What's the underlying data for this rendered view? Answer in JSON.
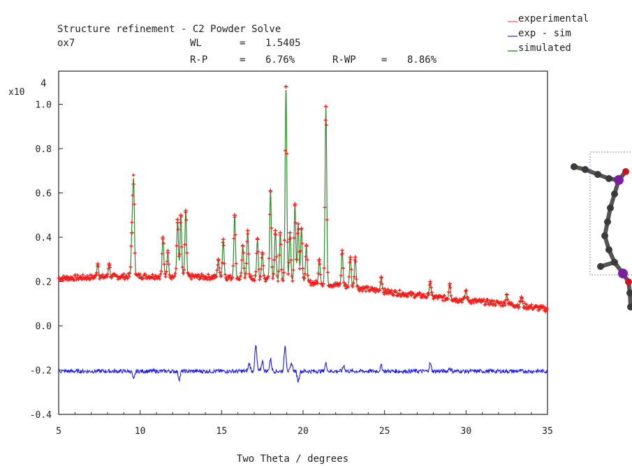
{
  "header": {
    "title": "Structure refinement - C2 Powder Solve",
    "sample": "ox7",
    "wl_label": "WL",
    "wl_value": "1.5405",
    "rp_label": "R-P",
    "rp_value": "6.76%",
    "rwp_label": "R-WP",
    "rwp_value": "8.86%"
  },
  "chart_data": {
    "type": "line",
    "title": "Structure refinement - C2 Powder Solve",
    "xlabel": "Two Theta / degrees",
    "ylabel": "",
    "y_multiplier": "x10",
    "y_multiplier_exponent": "4",
    "xlim": [
      5,
      35
    ],
    "ylim": [
      -0.4,
      1.15
    ],
    "x_ticks": [
      5,
      10,
      15,
      20,
      25,
      30,
      35
    ],
    "x_tick_labels": [
      "5",
      "10",
      "15",
      "20",
      "25",
      "30",
      "35"
    ],
    "y_ticks": [
      -0.4,
      -0.2,
      0.0,
      0.2,
      0.4,
      0.6,
      0.8,
      1.0
    ],
    "y_tick_labels": [
      "-0.4",
      "-0.2",
      "0.0",
      "0.2",
      "0.4",
      "0.6",
      "0.8",
      "1.0"
    ],
    "grid": false,
    "legend_position": "top-right",
    "legend": [
      {
        "name": "experimental",
        "color": "#ff0000"
      },
      {
        "name": "exp - sim",
        "color": "#0000ff"
      },
      {
        "name": "simulated",
        "color": "#008000"
      }
    ],
    "background_trend": [
      [
        5,
        0.215
      ],
      [
        10,
        0.225
      ],
      [
        15,
        0.22
      ],
      [
        19,
        0.205
      ],
      [
        22,
        0.185
      ],
      [
        25,
        0.155
      ],
      [
        28,
        0.13
      ],
      [
        30,
        0.115
      ],
      [
        33,
        0.095
      ],
      [
        35,
        0.075
      ]
    ],
    "peaks": [
      [
        7.4,
        0.28
      ],
      [
        8.1,
        0.28
      ],
      [
        9.5,
        0.42
      ],
      [
        9.6,
        0.64
      ],
      [
        11.4,
        0.4
      ],
      [
        11.7,
        0.33
      ],
      [
        12.3,
        0.48
      ],
      [
        12.5,
        0.5
      ],
      [
        12.8,
        0.52
      ],
      [
        14.8,
        0.3
      ],
      [
        15.1,
        0.39
      ],
      [
        15.8,
        0.5
      ],
      [
        16.3,
        0.36
      ],
      [
        16.6,
        0.43
      ],
      [
        17.2,
        0.39
      ],
      [
        17.5,
        0.33
      ],
      [
        18.0,
        0.61
      ],
      [
        18.3,
        0.43
      ],
      [
        18.6,
        0.42
      ],
      [
        18.95,
        1.08
      ],
      [
        19.2,
        0.42
      ],
      [
        19.5,
        0.55
      ],
      [
        19.7,
        0.46
      ],
      [
        19.9,
        0.44
      ],
      [
        20.2,
        0.36
      ],
      [
        21.0,
        0.3
      ],
      [
        21.4,
        0.99
      ],
      [
        22.4,
        0.34
      ],
      [
        22.9,
        0.31
      ],
      [
        23.2,
        0.31
      ],
      [
        24.8,
        0.22
      ],
      [
        27.8,
        0.2
      ],
      [
        29.0,
        0.19
      ],
      [
        30.0,
        0.16
      ],
      [
        32.5,
        0.14
      ],
      [
        33.4,
        0.13
      ]
    ],
    "difference_baseline": -0.205,
    "difference_features": [
      [
        9.6,
        -0.245
      ],
      [
        12.4,
        -0.24
      ],
      [
        16.7,
        -0.17
      ],
      [
        17.1,
        -0.09
      ],
      [
        17.5,
        -0.16
      ],
      [
        18.0,
        -0.15
      ],
      [
        18.9,
        -0.09
      ],
      [
        19.3,
        -0.17
      ],
      [
        19.7,
        -0.25
      ],
      [
        21.4,
        -0.17
      ],
      [
        22.5,
        -0.18
      ],
      [
        24.8,
        -0.18
      ],
      [
        27.8,
        -0.17
      ],
      [
        29.0,
        -0.19
      ]
    ]
  },
  "molecule": {
    "atom_colors": {
      "carbon": "#3a3a3a",
      "phosphorus": "#7a1fa2",
      "oxygen": "#cc1122"
    },
    "cell_color": "#8a8ae8"
  }
}
